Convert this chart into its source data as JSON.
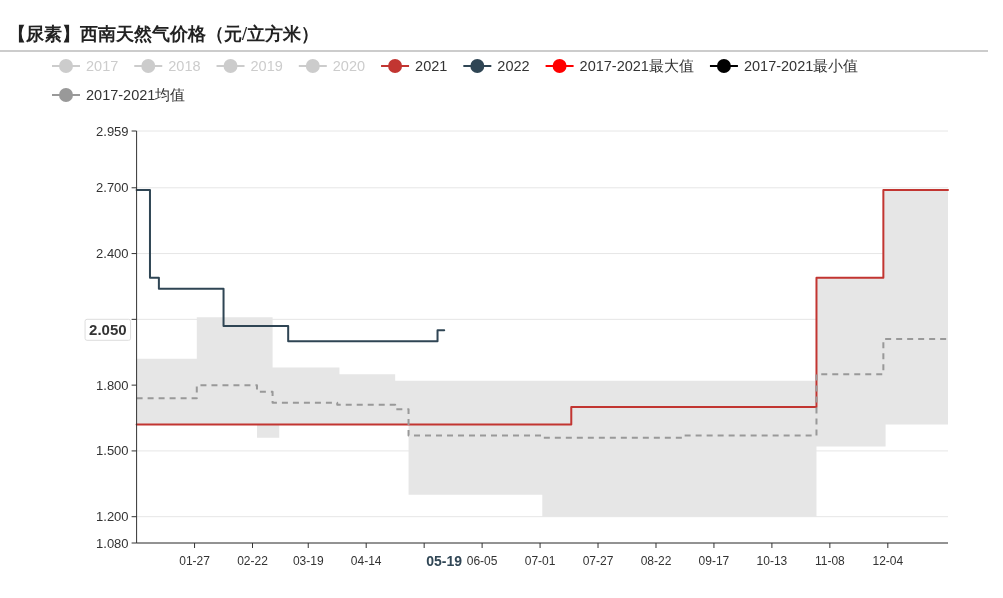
{
  "chart_data": {
    "type": "step",
    "title": "【尿素】西南天然气价格（元/立方米）",
    "xlim": [
      "--01-01",
      "--12-31"
    ],
    "xticks": [
      {
        "value": "--01-27",
        "label": "01-27"
      },
      {
        "value": "--02-22",
        "label": "02-22"
      },
      {
        "value": "--03-19",
        "label": "03-19"
      },
      {
        "value": "--04-14",
        "label": "04-14"
      },
      {
        "value": "--05-10",
        "label": null
      },
      {
        "value": "--06-05",
        "label": "06-05"
      },
      {
        "value": "--07-01",
        "label": "07-01"
      },
      {
        "value": "--07-27",
        "label": "07-27"
      },
      {
        "value": "--08-22",
        "label": "08-22"
      },
      {
        "value": "--09-17",
        "label": "09-17"
      },
      {
        "value": "--10-13",
        "label": "10-13"
      },
      {
        "value": "--11-08",
        "label": "11-08"
      },
      {
        "value": "--12-04",
        "label": "12-04"
      }
    ],
    "ylim": [
      1.08,
      2.959
    ],
    "yticks": [
      {
        "value": 1.08,
        "label": "1.080"
      },
      {
        "value": 1.2,
        "label": "1.200"
      },
      {
        "value": 1.5,
        "label": "1.500"
      },
      {
        "value": 1.8,
        "label": "1.800"
      },
      {
        "value": 2.1,
        "label": null
      },
      {
        "value": 2.4,
        "label": "2.400"
      },
      {
        "value": 2.7,
        "label": "2.700"
      },
      {
        "value": 2.959,
        "label": "2.959"
      }
    ],
    "grid": "y",
    "legend": "top",
    "marker": "none",
    "annotations": [
      "05-19",
      "2.050"
    ],
    "series": [
      {
        "name": "2017",
        "color": "#cccccc"
      },
      {
        "name": "2018",
        "color": "#cccccc"
      },
      {
        "name": "2019",
        "color": "#cccccc"
      },
      {
        "name": "2020",
        "color": "#cccccc"
      },
      {
        "name": "2021",
        "color": "#c23531",
        "x": [
          "--01-01",
          "--07-15",
          "--11-02",
          "--12-02",
          "--12-31"
        ],
        "values": [
          1.62,
          1.7,
          2.29,
          2.69,
          2.69
        ]
      },
      {
        "name": "2022",
        "color": "#2f4554",
        "x": [
          "--01-01",
          "--01-07",
          "--01-11",
          "--02-09",
          "--03-10",
          "--05-16",
          "--05-19"
        ],
        "values": [
          2.69,
          2.29,
          2.24,
          2.07,
          2.0,
          2.05,
          2.05
        ]
      },
      {
        "name": "2017-2021最大值",
        "color": "#ff0000"
      },
      {
        "name": "2017-2021最小值",
        "color": "#000000"
      },
      {
        "name": "2017-2021均值",
        "color": "#999999",
        "line_style": "dashed",
        "x": [
          "--01-01",
          "--01-28",
          "--02-24",
          "--03-03",
          "--03-06",
          "--04-01",
          "--04-02",
          "--04-27",
          "--05-03",
          "--07-02",
          "--09-03",
          "--11-02",
          "--12-02",
          "--12-03",
          "--12-31"
        ],
        "values": [
          1.74,
          1.8,
          1.77,
          1.72,
          1.72,
          1.71,
          1.71,
          1.69,
          1.57,
          1.56,
          1.57,
          1.85,
          2.01,
          2.01,
          2.01
        ],
        "upper": [
          1.92,
          2.11,
          2.11,
          1.88,
          1.88,
          1.88,
          1.85,
          1.82,
          1.82,
          1.82,
          1.82,
          2.29,
          2.69,
          2.69,
          2.69
        ],
        "lower": [
          1.62,
          1.62,
          1.56,
          1.56,
          1.62,
          1.62,
          1.62,
          1.62,
          1.3,
          1.2,
          1.2,
          1.52,
          1.52,
          1.62,
          1.62
        ]
      }
    ]
  }
}
